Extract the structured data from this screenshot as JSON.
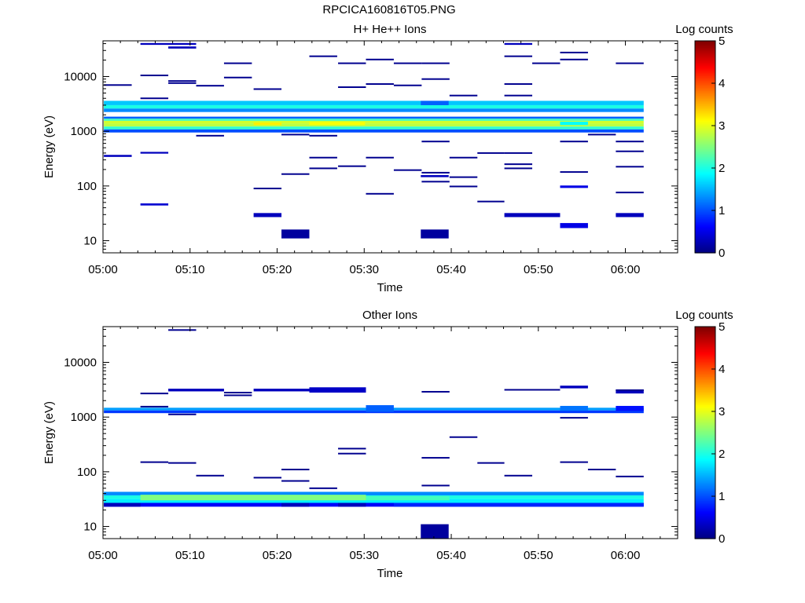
{
  "page": {
    "title": "RPCICA160816T05.PNG"
  },
  "colorbar": {
    "label": "Log counts",
    "min": 0,
    "max": 5,
    "ticks": [
      "0",
      "1",
      "2",
      "3",
      "4",
      "5"
    ],
    "colormap": "jet"
  },
  "chart_data": [
    {
      "type": "heatmap",
      "title": "H+ He++ Ions",
      "xlabel": "Time",
      "ylabel": "Energy (eV)",
      "yscale": "log",
      "xlim_min": [
        0,
        66
      ],
      "ylim": [
        6,
        45000
      ],
      "xticks": [
        {
          "t": 0,
          "label": "05:00"
        },
        {
          "t": 10,
          "label": "05:10"
        },
        {
          "t": 20,
          "label": "05:20"
        },
        {
          "t": 30,
          "label": "05:30"
        },
        {
          "t": 40,
          "label": "05:40"
        },
        {
          "t": 50,
          "label": "05:50"
        },
        {
          "t": 60,
          "label": "06:00"
        }
      ],
      "yticks": [
        {
          "v": 10,
          "label": "10"
        },
        {
          "v": 100,
          "label": "100"
        },
        {
          "v": 1000,
          "label": "1000"
        },
        {
          "v": 10000,
          "label": "10000"
        }
      ],
      "cells": [
        {
          "t0": 0.1,
          "t1": 62.1,
          "e0": 3000,
          "e1": 3600,
          "v": 1.6
        },
        {
          "t0": 0.1,
          "t1": 62.1,
          "e0": 2600,
          "e1": 3000,
          "v": 2.0
        },
        {
          "t0": 0.1,
          "t1": 62.1,
          "e0": 2250,
          "e1": 2600,
          "v": 1.3
        },
        {
          "t0": 0.1,
          "t1": 62.1,
          "e0": 1700,
          "e1": 1850,
          "v": 1.1
        },
        {
          "t0": 0.1,
          "t1": 62.1,
          "e0": 1550,
          "e1": 1700,
          "v": 2.2
        },
        {
          "t0": 0.1,
          "t1": 62.1,
          "e0": 1380,
          "e1": 1550,
          "v": 2.9
        },
        {
          "t0": 0.1,
          "t1": 62.1,
          "e0": 1220,
          "e1": 1380,
          "v": 2.8
        },
        {
          "t0": 0.1,
          "t1": 62.1,
          "e0": 1080,
          "e1": 1220,
          "v": 2.1
        },
        {
          "t0": 0.1,
          "t1": 62.1,
          "e0": 950,
          "e1": 1080,
          "v": 1.0
        },
        {
          "t0": 17.3,
          "t1": 20.5,
          "e0": 1300,
          "e1": 1450,
          "v": 3.2
        },
        {
          "t0": 23.7,
          "t1": 30.1,
          "e0": 1300,
          "e1": 1480,
          "v": 3.1
        },
        {
          "t0": 20.5,
          "t1": 23.7,
          "e0": 11,
          "e1": 16,
          "v": 0.15
        },
        {
          "t0": 36.5,
          "t1": 39.7,
          "e0": 11,
          "e1": 16,
          "v": 0.15
        },
        {
          "t0": 17.3,
          "t1": 20.5,
          "e0": 27,
          "e1": 32,
          "v": 0.3
        },
        {
          "t0": 46.1,
          "t1": 52.5,
          "e0": 27,
          "e1": 32,
          "v": 0.3
        },
        {
          "t0": 58.9,
          "t1": 62.1,
          "e0": 27,
          "e1": 32,
          "v": 0.3
        },
        {
          "t0": 52.5,
          "t1": 55.7,
          "e0": 17,
          "e1": 21,
          "v": 0.5
        },
        {
          "t0": 4.3,
          "t1": 7.5,
          "e0": 44,
          "e1": 48,
          "v": 0.4
        },
        {
          "t0": 52.5,
          "t1": 55.7,
          "e0": 92,
          "e1": 102,
          "v": 0.5
        },
        {
          "t0": 36.5,
          "t1": 39.7,
          "e0": 145,
          "e1": 158,
          "v": 0.3
        },
        {
          "t0": 0.1,
          "t1": 3.3,
          "e0": 340,
          "e1": 370,
          "v": 0.3
        },
        {
          "t0": 4.3,
          "t1": 7.5,
          "e0": 390,
          "e1": 420,
          "v": 0.3
        },
        {
          "t0": 7.5,
          "t1": 10.7,
          "e0": 32500,
          "e1": 35500,
          "v": 0.3
        },
        {
          "t0": 4.3,
          "t1": 10.7,
          "e0": 38000,
          "e1": 41000,
          "v": 0.3
        },
        {
          "t0": 46.1,
          "t1": 49.3,
          "e0": 38000,
          "e1": 41000,
          "v": 0.3
        },
        {
          "t0": 36.5,
          "t1": 39.7,
          "e0": 3000,
          "e1": 3600,
          "v": 1.1
        },
        {
          "t0": 52.5,
          "t1": 55.7,
          "e0": 1300,
          "e1": 1500,
          "v": 1.9
        }
      ],
      "lines": [
        {
          "t0": 0.1,
          "t1": 3.3,
          "e": 7000
        },
        {
          "t0": 4.3,
          "t1": 7.5,
          "e": 10500
        },
        {
          "t0": 7.5,
          "t1": 10.7,
          "e": 8300
        },
        {
          "t0": 7.5,
          "t1": 10.7,
          "e": 7600
        },
        {
          "t0": 10.7,
          "t1": 13.9,
          "e": 6800
        },
        {
          "t0": 13.9,
          "t1": 17.1,
          "e": 17500
        },
        {
          "t0": 13.9,
          "t1": 17.1,
          "e": 9600
        },
        {
          "t0": 17.3,
          "t1": 20.5,
          "e": 5900
        },
        {
          "t0": 23.7,
          "t1": 26.9,
          "e": 23500
        },
        {
          "t0": 27.0,
          "t1": 30.2,
          "e": 17500
        },
        {
          "t0": 27.0,
          "t1": 30.2,
          "e": 6400
        },
        {
          "t0": 30.2,
          "t1": 33.4,
          "e": 20500
        },
        {
          "t0": 30.2,
          "t1": 33.4,
          "e": 7300
        },
        {
          "t0": 33.4,
          "t1": 36.6,
          "e": 17500
        },
        {
          "t0": 33.4,
          "t1": 36.6,
          "e": 6900
        },
        {
          "t0": 36.6,
          "t1": 39.8,
          "e": 17500
        },
        {
          "t0": 36.6,
          "t1": 39.8,
          "e": 9000
        },
        {
          "t0": 39.8,
          "t1": 43.0,
          "e": 4500
        },
        {
          "t0": 46.1,
          "t1": 49.3,
          "e": 23500
        },
        {
          "t0": 46.1,
          "t1": 49.3,
          "e": 7300
        },
        {
          "t0": 46.1,
          "t1": 49.3,
          "e": 4500
        },
        {
          "t0": 49.3,
          "t1": 52.5,
          "e": 17500
        },
        {
          "t0": 52.5,
          "t1": 55.7,
          "e": 27500
        },
        {
          "t0": 52.5,
          "t1": 55.7,
          "e": 20500
        },
        {
          "t0": 58.9,
          "t1": 62.1,
          "e": 17500
        },
        {
          "t0": 4.3,
          "t1": 7.5,
          "e": 4000
        },
        {
          "t0": 10.7,
          "t1": 13.9,
          "e": 830
        },
        {
          "t0": 20.5,
          "t1": 23.7,
          "e": 870
        },
        {
          "t0": 23.7,
          "t1": 26.9,
          "e": 830
        },
        {
          "t0": 36.6,
          "t1": 39.8,
          "e": 650
        },
        {
          "t0": 39.8,
          "t1": 43.0,
          "e": 330
        },
        {
          "t0": 43.0,
          "t1": 46.1,
          "e": 400
        },
        {
          "t0": 46.1,
          "t1": 49.3,
          "e": 400
        },
        {
          "t0": 52.5,
          "t1": 55.7,
          "e": 650
        },
        {
          "t0": 55.7,
          "t1": 58.9,
          "e": 870
        },
        {
          "t0": 58.9,
          "t1": 62.1,
          "e": 650
        },
        {
          "t0": 58.9,
          "t1": 62.1,
          "e": 430
        },
        {
          "t0": 23.7,
          "t1": 26.9,
          "e": 330
        },
        {
          "t0": 23.7,
          "t1": 26.9,
          "e": 210
        },
        {
          "t0": 27.0,
          "t1": 30.2,
          "e": 230
        },
        {
          "t0": 30.2,
          "t1": 33.4,
          "e": 330
        },
        {
          "t0": 33.4,
          "t1": 36.6,
          "e": 195
        },
        {
          "t0": 36.6,
          "t1": 39.8,
          "e": 175
        },
        {
          "t0": 36.6,
          "t1": 39.8,
          "e": 120
        },
        {
          "t0": 39.8,
          "t1": 43.0,
          "e": 145
        },
        {
          "t0": 46.1,
          "t1": 49.3,
          "e": 250
        },
        {
          "t0": 46.1,
          "t1": 49.3,
          "e": 210
        },
        {
          "t0": 52.5,
          "t1": 55.7,
          "e": 180
        },
        {
          "t0": 58.9,
          "t1": 62.1,
          "e": 225
        },
        {
          "t0": 20.5,
          "t1": 23.7,
          "e": 165
        },
        {
          "t0": 17.3,
          "t1": 20.5,
          "e": 90
        },
        {
          "t0": 30.2,
          "t1": 33.4,
          "e": 72
        },
        {
          "t0": 39.8,
          "t1": 43.0,
          "e": 98
        },
        {
          "t0": 43.0,
          "t1": 46.1,
          "e": 52
        },
        {
          "t0": 58.9,
          "t1": 62.1,
          "e": 76
        }
      ]
    },
    {
      "type": "heatmap",
      "title": "Other Ions",
      "xlabel": "Time",
      "ylabel": "Energy (eV)",
      "yscale": "log",
      "xlim_min": [
        0,
        66
      ],
      "ylim": [
        6,
        45000
      ],
      "xticks": [
        {
          "t": 0,
          "label": "05:00"
        },
        {
          "t": 10,
          "label": "05:10"
        },
        {
          "t": 20,
          "label": "05:20"
        },
        {
          "t": 30,
          "label": "05:30"
        },
        {
          "t": 40,
          "label": "05:40"
        },
        {
          "t": 50,
          "label": "05:50"
        },
        {
          "t": 60,
          "label": "06:00"
        }
      ],
      "yticks": [
        {
          "v": 10,
          "label": "10"
        },
        {
          "v": 100,
          "label": "100"
        },
        {
          "v": 1000,
          "label": "1000"
        },
        {
          "v": 10000,
          "label": "10000"
        }
      ],
      "cells": [
        {
          "t0": 0.1,
          "t1": 62.1,
          "e0": 37,
          "e1": 43,
          "v": 1.3
        },
        {
          "t0": 0.1,
          "t1": 62.1,
          "e0": 32,
          "e1": 37,
          "v": 2.0
        },
        {
          "t0": 0.1,
          "t1": 62.1,
          "e0": 27,
          "e1": 32,
          "v": 1.8
        },
        {
          "t0": 0.1,
          "t1": 62.1,
          "e0": 23,
          "e1": 27,
          "v": 0.6
        },
        {
          "t0": 4.3,
          "t1": 30.2,
          "e0": 30,
          "e1": 38,
          "v": 2.5
        },
        {
          "t0": 30.2,
          "t1": 39.8,
          "e0": 30,
          "e1": 36,
          "v": 2.2
        },
        {
          "t0": 0.1,
          "t1": 4.3,
          "e0": 23,
          "e1": 27,
          "v": 0.3
        },
        {
          "t0": 20.5,
          "t1": 23.7,
          "e0": 23,
          "e1": 27,
          "v": 0.3
        },
        {
          "t0": 27.0,
          "t1": 30.2,
          "e0": 23,
          "e1": 27,
          "v": 0.3
        },
        {
          "t0": 36.5,
          "t1": 39.7,
          "e0": 5.8,
          "e1": 11,
          "v": 0.15
        },
        {
          "t0": 0.1,
          "t1": 62.1,
          "e0": 1320,
          "e1": 1480,
          "v": 1.4
        },
        {
          "t0": 0.1,
          "t1": 62.1,
          "e0": 1180,
          "e1": 1320,
          "v": 0.9
        },
        {
          "t0": 30.2,
          "t1": 33.4,
          "e0": 1250,
          "e1": 1650,
          "v": 1.1
        },
        {
          "t0": 52.5,
          "t1": 55.7,
          "e0": 1300,
          "e1": 1600,
          "v": 1.2
        },
        {
          "t0": 58.9,
          "t1": 62.1,
          "e0": 1300,
          "e1": 1600,
          "v": 0.7
        },
        {
          "t0": 7.5,
          "t1": 13.9,
          "e0": 2950,
          "e1": 3300,
          "v": 0.3
        },
        {
          "t0": 17.3,
          "t1": 23.7,
          "e0": 2950,
          "e1": 3300,
          "v": 0.3
        },
        {
          "t0": 23.7,
          "t1": 30.2,
          "e0": 2800,
          "e1": 3500,
          "v": 0.35
        },
        {
          "t0": 52.5,
          "t1": 55.7,
          "e0": 3350,
          "e1": 3750,
          "v": 0.3
        },
        {
          "t0": 58.9,
          "t1": 62.1,
          "e0": 2700,
          "e1": 3200,
          "v": 0.3
        },
        {
          "t0": 33.4,
          "t1": 62.1,
          "e0": 23,
          "e1": 27,
          "v": 0.8
        }
      ],
      "lines": [
        {
          "t0": 4.3,
          "t1": 7.5,
          "e": 2700
        },
        {
          "t0": 4.3,
          "t1": 7.5,
          "e": 1550
        },
        {
          "t0": 7.5,
          "t1": 10.7,
          "e": 39000
        },
        {
          "t0": 13.9,
          "t1": 17.1,
          "e": 2800
        },
        {
          "t0": 13.9,
          "t1": 17.1,
          "e": 2500
        },
        {
          "t0": 36.6,
          "t1": 39.8,
          "e": 2900
        },
        {
          "t0": 46.1,
          "t1": 52.5,
          "e": 3150
        },
        {
          "t0": 58.9,
          "t1": 62.1,
          "e": 3100
        },
        {
          "t0": 7.5,
          "t1": 10.7,
          "e": 1120
        },
        {
          "t0": 52.5,
          "t1": 55.7,
          "e": 970
        },
        {
          "t0": 39.8,
          "t1": 43.0,
          "e": 430
        },
        {
          "t0": 27.0,
          "t1": 30.2,
          "e": 265
        },
        {
          "t0": 27.0,
          "t1": 30.2,
          "e": 215
        },
        {
          "t0": 4.3,
          "t1": 7.5,
          "e": 150
        },
        {
          "t0": 7.5,
          "t1": 10.7,
          "e": 145
        },
        {
          "t0": 36.6,
          "t1": 39.8,
          "e": 180
        },
        {
          "t0": 43.0,
          "t1": 46.1,
          "e": 145
        },
        {
          "t0": 52.5,
          "t1": 55.7,
          "e": 150
        },
        {
          "t0": 55.7,
          "t1": 58.9,
          "e": 110
        },
        {
          "t0": 20.5,
          "t1": 23.7,
          "e": 110
        },
        {
          "t0": 10.7,
          "t1": 13.9,
          "e": 85
        },
        {
          "t0": 17.3,
          "t1": 20.5,
          "e": 78
        },
        {
          "t0": 20.5,
          "t1": 23.7,
          "e": 68
        },
        {
          "t0": 46.1,
          "t1": 49.3,
          "e": 85
        },
        {
          "t0": 58.9,
          "t1": 62.1,
          "e": 82
        },
        {
          "t0": 36.6,
          "t1": 39.8,
          "e": 56
        },
        {
          "t0": 23.7,
          "t1": 26.9,
          "e": 50
        }
      ]
    }
  ]
}
